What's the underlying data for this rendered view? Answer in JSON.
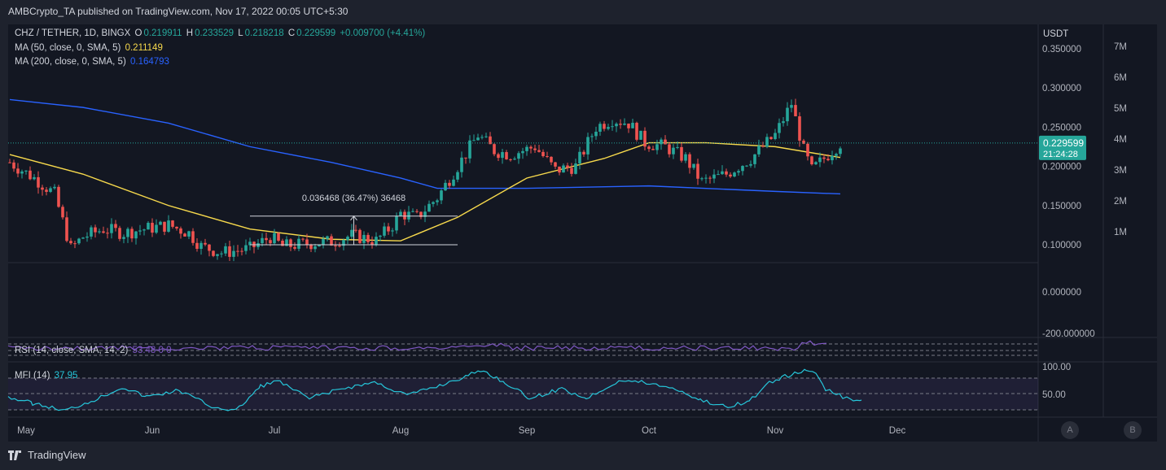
{
  "header": {
    "published": "AMBCrypto_TA published on TradingView.com, Nov 17, 2022 00:05 UTC+5:30"
  },
  "legend": {
    "symbol": "CHZ / TETHER, 1D, BINGX",
    "o_label": "O",
    "o": "0.219911",
    "h_label": "H",
    "h": "0.233529",
    "l_label": "L",
    "l": "0.218218",
    "c_label": "C",
    "c": "0.229599",
    "change": "+0.009700 (+4.41%)",
    "ma50_label": "MA (50, close, 0, SMA, 5)",
    "ma50": "0.211149",
    "ma200_label": "MA (200, close, 0, SMA, 5)",
    "ma200": "0.164793",
    "rsi_label": "RSI (14, close, SMA, 14, 2)",
    "rsi_values": "53.48  0  0",
    "mfi_label": "MFI (14)",
    "mfi": "37.95"
  },
  "colors": {
    "up": "#26a69a",
    "down": "#ef5350",
    "ma50": "#f7d94c",
    "ma200": "#2962ff",
    "mfi": "#26c6da",
    "rsi": "#7e57c2",
    "price_tag": "#26a69a"
  },
  "price_axis": {
    "unit": "USDT",
    "ticks": [
      "0.350000",
      "0.300000",
      "0.250000",
      "0.200000",
      "0.150000",
      "0.100000",
      "0.000000",
      "-200.000000"
    ],
    "current": "0.229599",
    "countdown": "21:24:28"
  },
  "volume_axis": {
    "ticks": [
      "7M",
      "6M",
      "5M",
      "4M",
      "3M",
      "2M",
      "1M"
    ]
  },
  "mfi_axis": {
    "ticks": [
      "100.00",
      "50.00"
    ]
  },
  "time_axis": {
    "ticks": [
      "May",
      "Jun",
      "Jul",
      "Aug",
      "Sep",
      "Oct",
      "Nov",
      "Dec"
    ]
  },
  "measure": {
    "label": "0.036468 (36.47%) 36468"
  },
  "buttons": {
    "a": "A",
    "b": "B"
  },
  "brand": {
    "name": "TradingView"
  },
  "chart_data": {
    "type": "candlestick",
    "title": "CHZ / TETHER, 1D, BINGX",
    "ylabel": "USDT",
    "ylim": [
      -0.2,
      0.37
    ],
    "x_range": [
      "2022-04-27",
      "2022-11-17"
    ],
    "candles_anchor_closes": [
      [
        "2022-04-27",
        0.205
      ],
      [
        "2022-05-03",
        0.185
      ],
      [
        "2022-05-08",
        0.165
      ],
      [
        "2022-05-10",
        0.13
      ],
      [
        "2022-05-12",
        0.095
      ],
      [
        "2022-05-15",
        0.11
      ],
      [
        "2022-05-20",
        0.12
      ],
      [
        "2022-05-25",
        0.115
      ],
      [
        "2022-05-30",
        0.12
      ],
      [
        "2022-06-05",
        0.125
      ],
      [
        "2022-06-10",
        0.115
      ],
      [
        "2022-06-13",
        0.098
      ],
      [
        "2022-06-18",
        0.09
      ],
      [
        "2022-06-25",
        0.095
      ],
      [
        "2022-06-30",
        0.11
      ],
      [
        "2022-07-03",
        0.098
      ],
      [
        "2022-07-10",
        0.102
      ],
      [
        "2022-07-15",
        0.104
      ],
      [
        "2022-07-20",
        0.112
      ],
      [
        "2022-07-26",
        0.105
      ],
      [
        "2022-07-30",
        0.125
      ],
      [
        "2022-08-01",
        0.14
      ],
      [
        "2022-08-05",
        0.135
      ],
      [
        "2022-08-10",
        0.16
      ],
      [
        "2022-08-15",
        0.2
      ],
      [
        "2022-08-20",
        0.24
      ],
      [
        "2022-08-24",
        0.22
      ],
      [
        "2022-08-28",
        0.215
      ],
      [
        "2022-09-03",
        0.225
      ],
      [
        "2022-09-08",
        0.195
      ],
      [
        "2022-09-13",
        0.2
      ],
      [
        "2022-09-18",
        0.25
      ],
      [
        "2022-09-22",
        0.26
      ],
      [
        "2022-09-26",
        0.255
      ],
      [
        "2022-09-30",
        0.23
      ],
      [
        "2022-10-05",
        0.225
      ],
      [
        "2022-10-10",
        0.21
      ],
      [
        "2022-10-14",
        0.18
      ],
      [
        "2022-10-20",
        0.19
      ],
      [
        "2022-10-26",
        0.21
      ],
      [
        "2022-11-01",
        0.24
      ],
      [
        "2022-11-05",
        0.28
      ],
      [
        "2022-11-08",
        0.22
      ],
      [
        "2022-11-10",
        0.195
      ],
      [
        "2022-11-14",
        0.215
      ],
      [
        "2022-11-17",
        0.229599
      ]
    ],
    "ma50": [
      [
        "2022-04-27",
        0.215
      ],
      [
        "2022-05-15",
        0.19
      ],
      [
        "2022-06-05",
        0.15
      ],
      [
        "2022-06-25",
        0.12
      ],
      [
        "2022-07-15",
        0.107
      ],
      [
        "2022-08-01",
        0.105
      ],
      [
        "2022-08-15",
        0.135
      ],
      [
        "2022-09-01",
        0.185
      ],
      [
        "2022-09-20",
        0.21
      ],
      [
        "2022-10-01",
        0.23
      ],
      [
        "2022-10-15",
        0.23
      ],
      [
        "2022-11-01",
        0.225
      ],
      [
        "2022-11-17",
        0.211149
      ]
    ],
    "ma200": [
      [
        "2022-04-27",
        0.285
      ],
      [
        "2022-05-15",
        0.275
      ],
      [
        "2022-06-05",
        0.255
      ],
      [
        "2022-06-25",
        0.225
      ],
      [
        "2022-07-15",
        0.205
      ],
      [
        "2022-08-01",
        0.185
      ],
      [
        "2022-08-10",
        0.172
      ],
      [
        "2022-09-01",
        0.172
      ],
      [
        "2022-10-01",
        0.175
      ],
      [
        "2022-11-01",
        0.168
      ],
      [
        "2022-11-17",
        0.164793
      ]
    ],
    "measure": {
      "from": [
        "2022-06-25",
        0.1
      ],
      "to": [
        "2022-08-15",
        0.136468
      ],
      "delta": 0.036468,
      "pct": 36.47
    },
    "rsi": {
      "value": 53.48
    },
    "mfi": {
      "ylim": [
        20,
        110
      ],
      "last": 37.95
    }
  }
}
